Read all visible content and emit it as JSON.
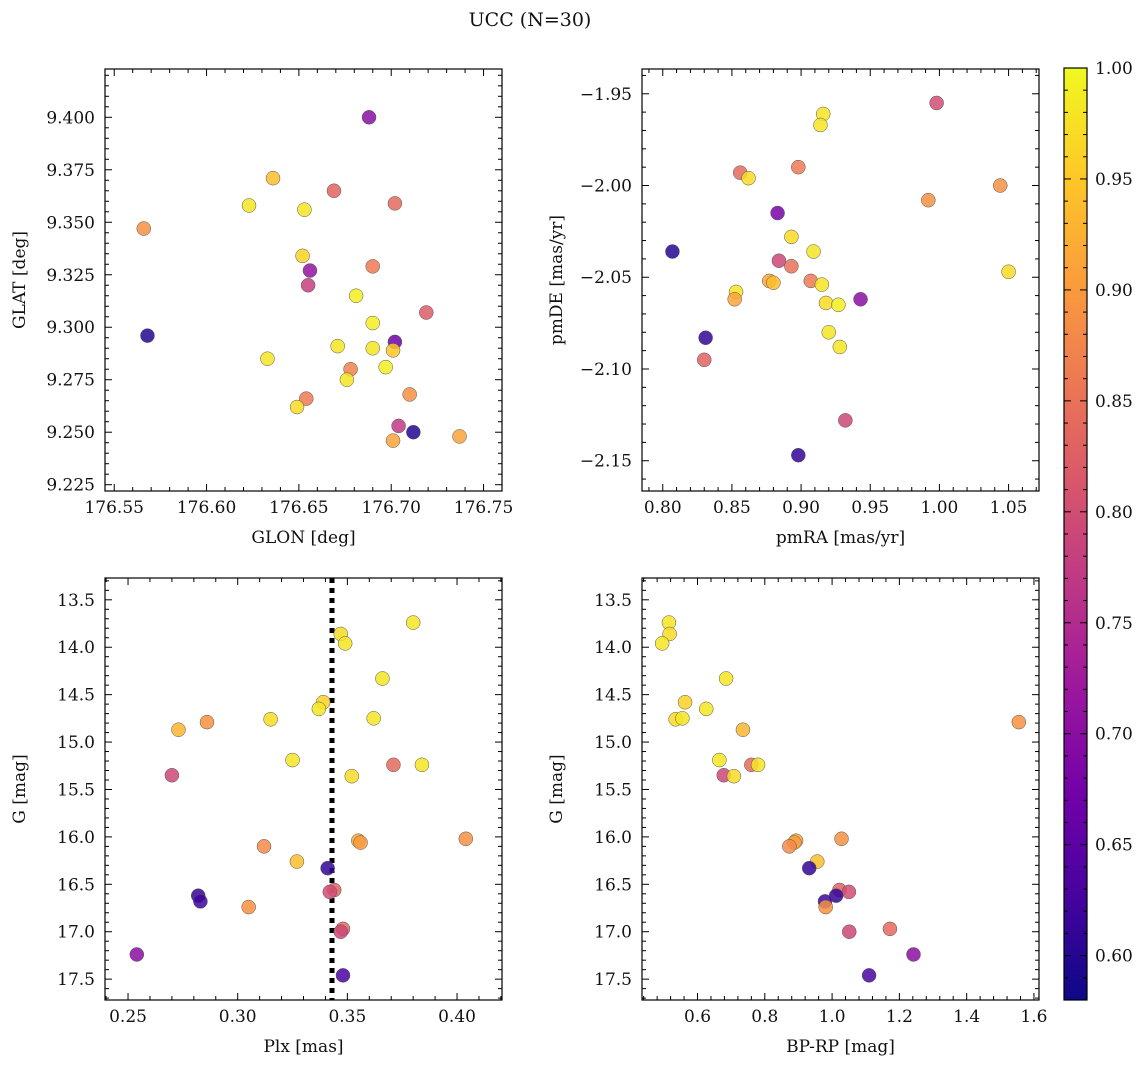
{
  "figure": {
    "title": "UCC (N=30)"
  },
  "colors": {
    "colormap": [
      "#0d0887",
      "#46039f",
      "#7201a8",
      "#9c179e",
      "#bd3786",
      "#d8576b",
      "#ed7953",
      "#fb9f3a",
      "#fdca26",
      "#f0f921"
    ],
    "marker_edge": "#555555",
    "reference_line": "#000000"
  },
  "chart_data": [
    {
      "id": "gal",
      "type": "scatter",
      "xlabel": "GLON [deg]",
      "ylabel": "GLAT [deg]",
      "xlim": [
        176.545,
        176.76
      ],
      "ylim": [
        9.222,
        9.423
      ],
      "xticks": [
        176.55,
        176.6,
        176.65,
        176.7,
        176.75
      ],
      "xtick_labels": [
        "176.55",
        "176.60",
        "176.65",
        "176.70",
        "176.75"
      ],
      "yticks": [
        9.225,
        9.25,
        9.275,
        9.3,
        9.325,
        9.35,
        9.375,
        9.4
      ],
      "ytick_labels": [
        "9.225",
        "9.250",
        "9.275",
        "9.300",
        "9.325",
        "9.350",
        "9.375",
        "9.400"
      ],
      "points": [
        {
          "x": 176.688,
          "y": 9.4,
          "c": 0.7
        },
        {
          "x": 176.636,
          "y": 9.371,
          "c": 0.94
        },
        {
          "x": 176.669,
          "y": 9.365,
          "c": 0.83
        },
        {
          "x": 176.623,
          "y": 9.358,
          "c": 0.98
        },
        {
          "x": 176.653,
          "y": 9.356,
          "c": 0.98
        },
        {
          "x": 176.702,
          "y": 9.359,
          "c": 0.84
        },
        {
          "x": 176.566,
          "y": 9.347,
          "c": 0.89
        },
        {
          "x": 176.652,
          "y": 9.334,
          "c": 0.96
        },
        {
          "x": 176.656,
          "y": 9.327,
          "c": 0.71
        },
        {
          "x": 176.69,
          "y": 9.329,
          "c": 0.86
        },
        {
          "x": 176.655,
          "y": 9.32,
          "c": 0.78
        },
        {
          "x": 176.681,
          "y": 9.315,
          "c": 0.99
        },
        {
          "x": 176.719,
          "y": 9.307,
          "c": 0.82
        },
        {
          "x": 176.69,
          "y": 9.302,
          "c": 0.99
        },
        {
          "x": 176.568,
          "y": 9.296,
          "c": 0.6
        },
        {
          "x": 176.702,
          "y": 9.293,
          "c": 0.67
        },
        {
          "x": 176.671,
          "y": 9.291,
          "c": 0.98
        },
        {
          "x": 176.69,
          "y": 9.29,
          "c": 0.98
        },
        {
          "x": 176.701,
          "y": 9.289,
          "c": 0.95
        },
        {
          "x": 176.633,
          "y": 9.285,
          "c": 0.98
        },
        {
          "x": 176.697,
          "y": 9.281,
          "c": 0.99
        },
        {
          "x": 176.678,
          "y": 9.28,
          "c": 0.87
        },
        {
          "x": 176.676,
          "y": 9.275,
          "c": 0.98
        },
        {
          "x": 176.71,
          "y": 9.268,
          "c": 0.89
        },
        {
          "x": 176.654,
          "y": 9.266,
          "c": 0.86
        },
        {
          "x": 176.649,
          "y": 9.262,
          "c": 0.97
        },
        {
          "x": 176.704,
          "y": 9.253,
          "c": 0.77
        },
        {
          "x": 176.712,
          "y": 9.25,
          "c": 0.6
        },
        {
          "x": 176.737,
          "y": 9.248,
          "c": 0.91
        },
        {
          "x": 176.701,
          "y": 9.246,
          "c": 0.91
        }
      ]
    },
    {
      "id": "pm",
      "type": "scatter",
      "xlabel": "pmRA [mas/yr]",
      "ylabel": "pmDE [mas/yr]",
      "xlim": [
        0.785,
        1.072
      ],
      "ylim": [
        -2.1665,
        -1.9365
      ],
      "xticks": [
        0.8,
        0.85,
        0.9,
        0.95,
        1.0,
        1.05
      ],
      "xtick_labels": [
        "0.80",
        "0.85",
        "0.90",
        "0.95",
        "1.00",
        "1.05"
      ],
      "yticks": [
        -2.15,
        -2.1,
        -2.05,
        -2.0,
        -1.95
      ],
      "ytick_labels": [
        "−2.15",
        "−2.10",
        "−2.05",
        "−2.00",
        "−1.95"
      ],
      "points": [
        {
          "x": 0.916,
          "y": -1.961,
          "c": 0.98
        },
        {
          "x": 0.914,
          "y": -1.967,
          "c": 0.98
        },
        {
          "x": 0.998,
          "y": -1.955,
          "c": 0.8
        },
        {
          "x": 0.856,
          "y": -1.993,
          "c": 0.84
        },
        {
          "x": 0.862,
          "y": -1.996,
          "c": 0.97
        },
        {
          "x": 0.898,
          "y": -1.99,
          "c": 0.86
        },
        {
          "x": 1.044,
          "y": -2.0,
          "c": 0.89
        },
        {
          "x": 0.992,
          "y": -2.008,
          "c": 0.89
        },
        {
          "x": 0.883,
          "y": -2.015,
          "c": 0.68
        },
        {
          "x": 0.893,
          "y": -2.028,
          "c": 0.97
        },
        {
          "x": 0.807,
          "y": -2.036,
          "c": 0.6
        },
        {
          "x": 0.909,
          "y": -2.036,
          "c": 0.98
        },
        {
          "x": 0.884,
          "y": -2.041,
          "c": 0.79
        },
        {
          "x": 0.893,
          "y": -2.044,
          "c": 0.85
        },
        {
          "x": 1.05,
          "y": -2.047,
          "c": 0.97
        },
        {
          "x": 0.877,
          "y": -2.052,
          "c": 0.91
        },
        {
          "x": 0.88,
          "y": -2.053,
          "c": 0.94
        },
        {
          "x": 0.907,
          "y": -2.052,
          "c": 0.86
        },
        {
          "x": 0.915,
          "y": -2.054,
          "c": 0.98
        },
        {
          "x": 0.853,
          "y": -2.058,
          "c": 0.98
        },
        {
          "x": 0.852,
          "y": -2.062,
          "c": 0.91
        },
        {
          "x": 0.943,
          "y": -2.062,
          "c": 0.7
        },
        {
          "x": 0.918,
          "y": -2.064,
          "c": 0.97
        },
        {
          "x": 0.927,
          "y": -2.065,
          "c": 0.99
        },
        {
          "x": 0.92,
          "y": -2.08,
          "c": 0.98
        },
        {
          "x": 0.831,
          "y": -2.083,
          "c": 0.61
        },
        {
          "x": 0.928,
          "y": -2.088,
          "c": 0.98
        },
        {
          "x": 0.83,
          "y": -2.095,
          "c": 0.83
        },
        {
          "x": 0.932,
          "y": -2.128,
          "c": 0.79
        },
        {
          "x": 0.898,
          "y": -2.147,
          "c": 0.61
        }
      ]
    },
    {
      "id": "plx",
      "type": "scatter",
      "xlabel": "Plx [mas]",
      "ylabel": "G [mag]",
      "xlim": [
        0.2395,
        0.4205
      ],
      "ylim": [
        17.72,
        13.27
      ],
      "y_inverted": true,
      "reference_x": 0.343,
      "xticks": [
        0.25,
        0.3,
        0.35,
        0.4
      ],
      "xtick_labels": [
        "0.25",
        "0.30",
        "0.35",
        "0.40"
      ],
      "yticks": [
        13.5,
        14.0,
        14.5,
        15.0,
        15.5,
        16.0,
        16.5,
        17.0,
        17.5
      ],
      "ytick_labels": [
        "13.5",
        "14.0",
        "14.5",
        "15.0",
        "15.5",
        "16.0",
        "16.5",
        "17.0",
        "17.5"
      ],
      "points": [
        {
          "x": 0.38,
          "y": 13.74,
          "c": 0.98
        },
        {
          "x": 0.347,
          "y": 13.86,
          "c": 0.97
        },
        {
          "x": 0.349,
          "y": 13.96,
          "c": 0.98
        },
        {
          "x": 0.366,
          "y": 14.33,
          "c": 0.98
        },
        {
          "x": 0.339,
          "y": 14.58,
          "c": 0.96
        },
        {
          "x": 0.337,
          "y": 14.65,
          "c": 0.98
        },
        {
          "x": 0.315,
          "y": 14.76,
          "c": 0.97
        },
        {
          "x": 0.286,
          "y": 14.79,
          "c": 0.89
        },
        {
          "x": 0.362,
          "y": 14.75,
          "c": 0.98
        },
        {
          "x": 0.273,
          "y": 14.87,
          "c": 0.93
        },
        {
          "x": 0.325,
          "y": 15.19,
          "c": 0.98
        },
        {
          "x": 0.371,
          "y": 15.24,
          "c": 0.84
        },
        {
          "x": 0.384,
          "y": 15.24,
          "c": 0.98
        },
        {
          "x": 0.27,
          "y": 15.35,
          "c": 0.79
        },
        {
          "x": 0.352,
          "y": 15.36,
          "c": 0.97
        },
        {
          "x": 0.404,
          "y": 16.02,
          "c": 0.89
        },
        {
          "x": 0.355,
          "y": 16.04,
          "c": 0.92
        },
        {
          "x": 0.356,
          "y": 16.06,
          "c": 0.9
        },
        {
          "x": 0.312,
          "y": 16.1,
          "c": 0.88
        },
        {
          "x": 0.327,
          "y": 16.26,
          "c": 0.94
        },
        {
          "x": 0.341,
          "y": 16.33,
          "c": 0.61
        },
        {
          "x": 0.344,
          "y": 16.56,
          "c": 0.83
        },
        {
          "x": 0.342,
          "y": 16.58,
          "c": 0.8
        },
        {
          "x": 0.282,
          "y": 16.62,
          "c": 0.61
        },
        {
          "x": 0.283,
          "y": 16.68,
          "c": 0.62
        },
        {
          "x": 0.305,
          "y": 16.74,
          "c": 0.89
        },
        {
          "x": 0.348,
          "y": 16.97,
          "c": 0.84
        },
        {
          "x": 0.347,
          "y": 17.0,
          "c": 0.79
        },
        {
          "x": 0.348,
          "y": 17.46,
          "c": 0.63
        },
        {
          "x": 0.254,
          "y": 17.24,
          "c": 0.7
        }
      ]
    },
    {
      "id": "cmd",
      "type": "scatter",
      "xlabel": "BP-RP [mag]",
      "ylabel": "G [mag]",
      "xlim": [
        0.435,
        1.615
      ],
      "ylim": [
        17.72,
        13.27
      ],
      "y_inverted": true,
      "xticks": [
        0.6,
        0.8,
        1.0,
        1.2,
        1.4,
        1.6
      ],
      "xtick_labels": [
        "0.6",
        "0.8",
        "1.0",
        "1.2",
        "1.4",
        "1.6"
      ],
      "yticks": [
        13.5,
        14.0,
        14.5,
        15.0,
        15.5,
        16.0,
        16.5,
        17.0,
        17.5
      ],
      "ytick_labels": [
        "13.5",
        "14.0",
        "14.5",
        "15.0",
        "15.5",
        "16.0",
        "16.5",
        "17.0",
        "17.5"
      ],
      "points": [
        {
          "x": 0.515,
          "y": 13.74,
          "c": 0.98
        },
        {
          "x": 0.517,
          "y": 13.86,
          "c": 0.97
        },
        {
          "x": 0.495,
          "y": 13.96,
          "c": 0.98
        },
        {
          "x": 0.685,
          "y": 14.33,
          "c": 0.98
        },
        {
          "x": 0.563,
          "y": 14.58,
          "c": 0.96
        },
        {
          "x": 0.626,
          "y": 14.65,
          "c": 0.98
        },
        {
          "x": 0.535,
          "y": 14.76,
          "c": 0.97
        },
        {
          "x": 0.555,
          "y": 14.75,
          "c": 0.98
        },
        {
          "x": 1.555,
          "y": 14.79,
          "c": 0.89
        },
        {
          "x": 0.735,
          "y": 14.87,
          "c": 0.93
        },
        {
          "x": 0.665,
          "y": 15.19,
          "c": 0.98
        },
        {
          "x": 0.76,
          "y": 15.24,
          "c": 0.84
        },
        {
          "x": 0.78,
          "y": 15.24,
          "c": 0.98
        },
        {
          "x": 0.678,
          "y": 15.35,
          "c": 0.79
        },
        {
          "x": 0.708,
          "y": 15.36,
          "c": 0.97
        },
        {
          "x": 1.028,
          "y": 16.02,
          "c": 0.89
        },
        {
          "x": 0.893,
          "y": 16.04,
          "c": 0.92
        },
        {
          "x": 0.888,
          "y": 16.06,
          "c": 0.9
        },
        {
          "x": 0.873,
          "y": 16.1,
          "c": 0.88
        },
        {
          "x": 0.956,
          "y": 16.26,
          "c": 0.94
        },
        {
          "x": 0.932,
          "y": 16.33,
          "c": 0.61
        },
        {
          "x": 1.022,
          "y": 16.56,
          "c": 0.83
        },
        {
          "x": 1.05,
          "y": 16.58,
          "c": 0.8
        },
        {
          "x": 1.012,
          "y": 16.62,
          "c": 0.61
        },
        {
          "x": 0.979,
          "y": 16.68,
          "c": 0.62
        },
        {
          "x": 0.981,
          "y": 16.74,
          "c": 0.89
        },
        {
          "x": 1.172,
          "y": 16.97,
          "c": 0.84
        },
        {
          "x": 1.051,
          "y": 17.0,
          "c": 0.79
        },
        {
          "x": 1.11,
          "y": 17.46,
          "c": 0.63
        },
        {
          "x": 1.242,
          "y": 17.24,
          "c": 0.7
        }
      ]
    }
  ],
  "colorbar": {
    "min": 0.58,
    "max": 1.0,
    "ticks": [
      0.6,
      0.65,
      0.7,
      0.75,
      0.8,
      0.85,
      0.9,
      0.95,
      1.0
    ],
    "tick_labels": [
      "0.60",
      "0.65",
      "0.70",
      "0.75",
      "0.80",
      "0.85",
      "0.90",
      "0.95",
      "1.00"
    ]
  }
}
